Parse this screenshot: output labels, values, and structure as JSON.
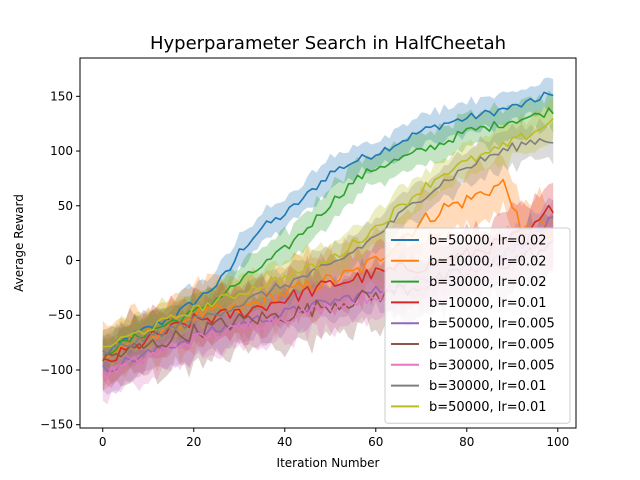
{
  "chart_data": {
    "type": "line",
    "title": "Hyperparameter Search in HalfCheetah",
    "xlabel": "Iteration Number",
    "ylabel": "Average Reward",
    "xlim": [
      -5,
      104
    ],
    "ylim": [
      -153,
      185
    ],
    "xticks": [
      0,
      20,
      40,
      60,
      80,
      100
    ],
    "yticks": [
      -150,
      -100,
      -50,
      0,
      50,
      100,
      150
    ],
    "grid": false,
    "legend_placement": "lower-right",
    "shaded_band": "standard deviation around each series mean",
    "series": [
      {
        "name": "b=50000, lr=0.02",
        "color": "#1f77b4",
        "band": 14,
        "keypoints": [
          [
            0,
            -88
          ],
          [
            5,
            -72
          ],
          [
            10,
            -62
          ],
          [
            15,
            -52
          ],
          [
            20,
            -38
          ],
          [
            25,
            -22
          ],
          [
            28,
            -8
          ],
          [
            30,
            8
          ],
          [
            35,
            30
          ],
          [
            40,
            42
          ],
          [
            45,
            60
          ],
          [
            50,
            80
          ],
          [
            55,
            90
          ],
          [
            60,
            98
          ],
          [
            65,
            108
          ],
          [
            70,
            118
          ],
          [
            75,
            125
          ],
          [
            80,
            130
          ],
          [
            85,
            135
          ],
          [
            90,
            140
          ],
          [
            95,
            145
          ],
          [
            97,
            153
          ],
          [
            99,
            148
          ]
        ]
      },
      {
        "name": "b=10000, lr=0.02",
        "color": "#ff7f0e",
        "band": 26,
        "keypoints": [
          [
            0,
            -88
          ],
          [
            10,
            -68
          ],
          [
            20,
            -50
          ],
          [
            30,
            -45
          ],
          [
            40,
            -30
          ],
          [
            50,
            -18
          ],
          [
            55,
            -12
          ],
          [
            60,
            0
          ],
          [
            65,
            18
          ],
          [
            70,
            35
          ],
          [
            75,
            48
          ],
          [
            80,
            55
          ],
          [
            85,
            65
          ],
          [
            88,
            70
          ],
          [
            90,
            55
          ],
          [
            92,
            20
          ],
          [
            95,
            40
          ],
          [
            98,
            22
          ],
          [
            99,
            25
          ]
        ]
      },
      {
        "name": "b=30000, lr=0.02",
        "color": "#2ca02c",
        "band": 15,
        "keypoints": [
          [
            0,
            -85
          ],
          [
            10,
            -65
          ],
          [
            20,
            -48
          ],
          [
            25,
            -35
          ],
          [
            30,
            -20
          ],
          [
            35,
            -5
          ],
          [
            40,
            10
          ],
          [
            45,
            30
          ],
          [
            50,
            52
          ],
          [
            55,
            72
          ],
          [
            60,
            85
          ],
          [
            65,
            92
          ],
          [
            70,
            100
          ],
          [
            75,
            108
          ],
          [
            80,
            118
          ],
          [
            85,
            122
          ],
          [
            90,
            128
          ],
          [
            95,
            132
          ],
          [
            99,
            138
          ]
        ]
      },
      {
        "name": "b=10000, lr=0.01",
        "color": "#d62728",
        "band": 24,
        "keypoints": [
          [
            0,
            -95
          ],
          [
            10,
            -72
          ],
          [
            20,
            -55
          ],
          [
            30,
            -48
          ],
          [
            40,
            -35
          ],
          [
            50,
            -22
          ],
          [
            60,
            -12
          ],
          [
            70,
            -5
          ],
          [
            80,
            5
          ],
          [
            90,
            20
          ],
          [
            95,
            30
          ],
          [
            99,
            50
          ]
        ]
      },
      {
        "name": "b=50000, lr=0.005",
        "color": "#9467bd",
        "band": 18,
        "keypoints": [
          [
            0,
            -100
          ],
          [
            10,
            -85
          ],
          [
            20,
            -70
          ],
          [
            30,
            -58
          ],
          [
            40,
            -48
          ],
          [
            50,
            -38
          ],
          [
            60,
            -28
          ],
          [
            70,
            -18
          ],
          [
            80,
            -5
          ],
          [
            90,
            10
          ],
          [
            99,
            37
          ]
        ]
      },
      {
        "name": "b=10000, lr=0.005",
        "color": "#8c564b",
        "band": 28,
        "keypoints": [
          [
            0,
            -90
          ],
          [
            10,
            -78
          ],
          [
            20,
            -65
          ],
          [
            30,
            -55
          ],
          [
            40,
            -50
          ],
          [
            50,
            -40
          ],
          [
            60,
            -32
          ],
          [
            70,
            -22
          ],
          [
            80,
            -12
          ],
          [
            90,
            0
          ],
          [
            99,
            12
          ]
        ]
      },
      {
        "name": "b=30000, lr=0.005",
        "color": "#e377c2",
        "band": 20,
        "keypoints": [
          [
            0,
            -105
          ],
          [
            10,
            -88
          ],
          [
            20,
            -72
          ],
          [
            30,
            -62
          ],
          [
            40,
            -52
          ],
          [
            50,
            -42
          ],
          [
            60,
            -32
          ],
          [
            70,
            -22
          ],
          [
            80,
            -10
          ],
          [
            90,
            2
          ],
          [
            99,
            15
          ]
        ]
      },
      {
        "name": "b=30000, lr=0.01",
        "color": "#7f7f7f",
        "band": 16,
        "keypoints": [
          [
            0,
            -85
          ],
          [
            10,
            -70
          ],
          [
            20,
            -55
          ],
          [
            30,
            -40
          ],
          [
            40,
            -22
          ],
          [
            50,
            -5
          ],
          [
            55,
            8
          ],
          [
            60,
            22
          ],
          [
            65,
            40
          ],
          [
            70,
            58
          ],
          [
            75,
            72
          ],
          [
            80,
            85
          ],
          [
            85,
            95
          ],
          [
            90,
            103
          ],
          [
            95,
            110
          ],
          [
            99,
            110
          ]
        ]
      },
      {
        "name": "b=50000, lr=0.01",
        "color": "#bcbd22",
        "band": 16,
        "keypoints": [
          [
            0,
            -80
          ],
          [
            10,
            -62
          ],
          [
            20,
            -45
          ],
          [
            30,
            -30
          ],
          [
            40,
            -15
          ],
          [
            50,
            0
          ],
          [
            55,
            15
          ],
          [
            60,
            30
          ],
          [
            65,
            48
          ],
          [
            70,
            65
          ],
          [
            75,
            80
          ],
          [
            80,
            90
          ],
          [
            85,
            98
          ],
          [
            90,
            108
          ],
          [
            95,
            118
          ],
          [
            99,
            128
          ]
        ]
      }
    ]
  }
}
